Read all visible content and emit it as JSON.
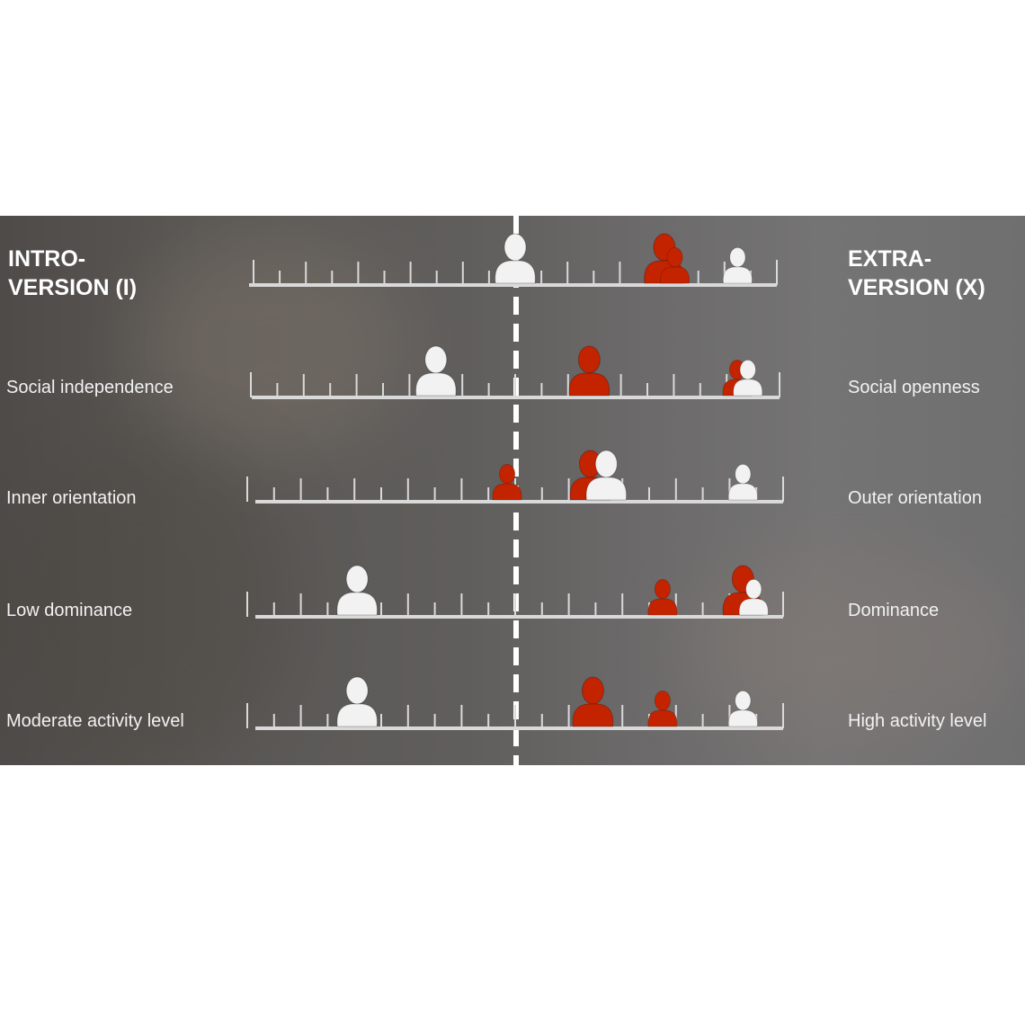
{
  "header": {
    "left_title": [
      "INTRO-",
      "VERSION (I)"
    ],
    "right_title": [
      "EXTRA-",
      "VERSION (X)"
    ]
  },
  "colors": {
    "marker_white": "#f2f2f2",
    "marker_red": "#c42300",
    "scale": "#d9d9d9",
    "center_line": "#ffffff"
  },
  "icon": "person-icon",
  "chart_data": {
    "type": "scatter",
    "xlim": [
      -10,
      10
    ],
    "rows": [
      {
        "left_label": "",
        "right_label": "",
        "markers": [
          {
            "color": "white",
            "size": "large",
            "value": 0
          },
          {
            "color": "red",
            "size": "large",
            "value": 5.7
          },
          {
            "color": "red",
            "size": "small",
            "value": 6.1
          },
          {
            "color": "white",
            "size": "small",
            "value": 8.5
          }
        ]
      },
      {
        "left_label": "Social independence",
        "right_label": "Social openness",
        "markers": [
          {
            "color": "white",
            "size": "large",
            "value": -3
          },
          {
            "color": "red",
            "size": "large",
            "value": 2.8
          },
          {
            "color": "red",
            "size": "small",
            "value": 8.4
          },
          {
            "color": "white",
            "size": "small",
            "value": 8.8
          }
        ]
      },
      {
        "left_label": "Inner orientation",
        "right_label": "Outer orientation",
        "markers": [
          {
            "color": "red",
            "size": "small",
            "value": -0.3
          },
          {
            "color": "red",
            "size": "large",
            "value": 2.8
          },
          {
            "color": "white",
            "size": "large",
            "value": 3.4
          },
          {
            "color": "white",
            "size": "small",
            "value": 8.5
          }
        ]
      },
      {
        "left_label": "Low dominance",
        "right_label": "Dominance",
        "markers": [
          {
            "color": "white",
            "size": "large",
            "value": -5.9
          },
          {
            "color": "red",
            "size": "small",
            "value": 5.5
          },
          {
            "color": "red",
            "size": "large",
            "value": 8.5
          },
          {
            "color": "white",
            "size": "small",
            "value": 8.9
          }
        ]
      },
      {
        "left_label": "Moderate activity level",
        "right_label": "High activity level",
        "markers": [
          {
            "color": "white",
            "size": "large",
            "value": -5.9
          },
          {
            "color": "red",
            "size": "large",
            "value": 2.9
          },
          {
            "color": "red",
            "size": "small",
            "value": 5.5
          },
          {
            "color": "white",
            "size": "small",
            "value": 8.5
          }
        ]
      }
    ]
  }
}
